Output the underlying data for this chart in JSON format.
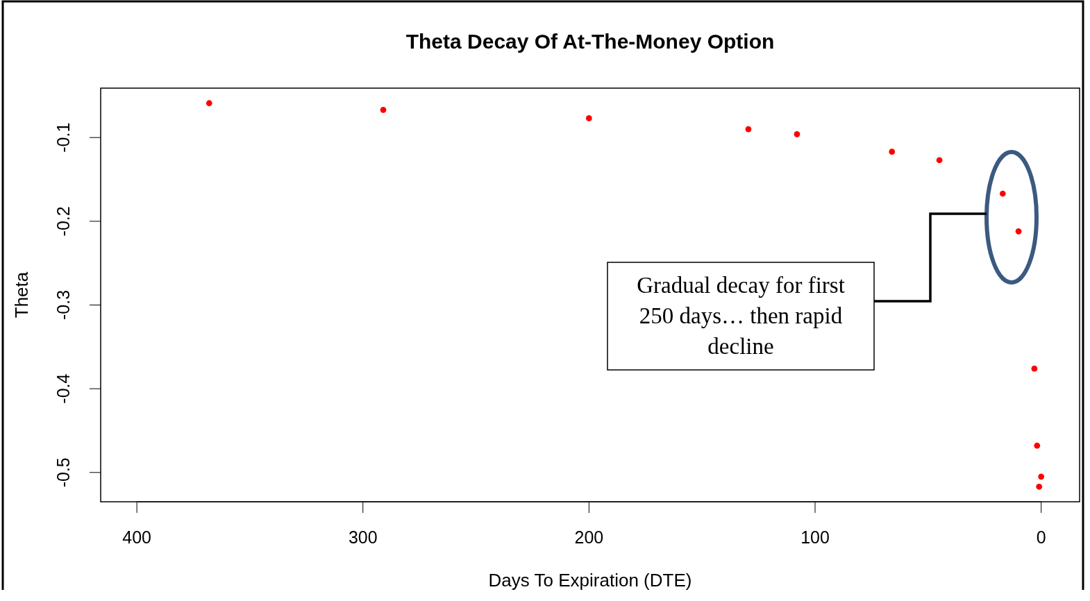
{
  "chart_data": {
    "type": "scatter",
    "title": "Theta Decay Of At-The-Money Option",
    "xlabel": "Days To Expiration (DTE)",
    "ylabel": "Theta",
    "x": [
      368,
      291,
      200,
      129.5,
      108,
      66,
      45,
      17,
      10,
      3,
      1.8,
      0,
      0.9
    ],
    "series": [
      {
        "color": "#ff0000",
        "values": [
          -0.059,
          -0.067,
          -0.077,
          -0.09,
          -0.096,
          -0.117,
          -0.127,
          -0.167,
          -0.212,
          -0.376,
          -0.468,
          -0.505,
          -0.517
        ]
      }
    ],
    "xlim": [
      416,
      -17
    ],
    "ylim": [
      -0.535,
      -0.041
    ],
    "xticks": [
      400,
      300,
      200,
      100,
      0
    ],
    "yticks": [
      {
        "value": -0.1,
        "label": "-0.1"
      },
      {
        "value": -0.2,
        "label": "-0.2"
      },
      {
        "value": -0.3,
        "label": "-0.3"
      },
      {
        "value": -0.4,
        "label": "-0.4"
      },
      {
        "value": -0.5,
        "label": "-0.5"
      }
    ],
    "marker": "circle",
    "grid": false,
    "annotations": [
      "Gradual decay for first 250 days… then rapid decline"
    ]
  }
}
